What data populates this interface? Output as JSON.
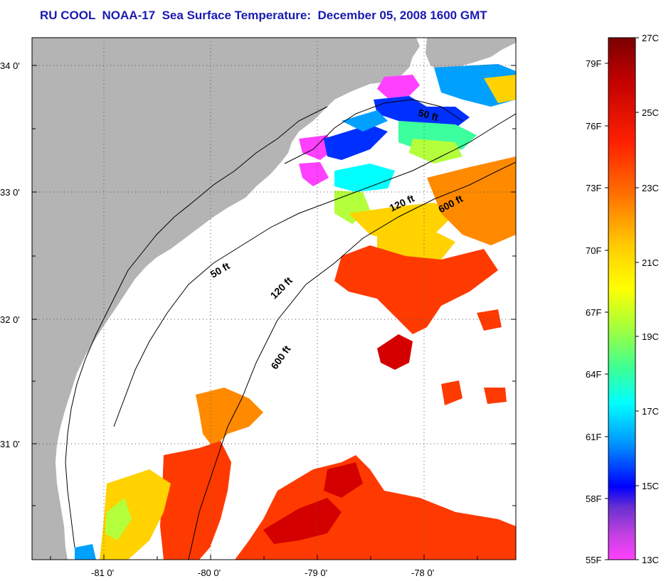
{
  "title": "RU COOL  NOAA-17  Sea Surface Temperature:  December 05, 2008 1600 GMT",
  "lat_ticks": [
    "34 0'",
    "33 0'",
    "32 0'",
    "31 0'"
  ],
  "lon_ticks": [
    "-81 0'",
    "-80 0'",
    "-79 0'",
    "-78 0'"
  ],
  "contours": [
    {
      "label": "50 ft"
    },
    {
      "label": "50 ft"
    },
    {
      "label": "120 ft"
    },
    {
      "label": "120 ft"
    },
    {
      "label": "600 ft"
    },
    {
      "label": "600 ft"
    }
  ],
  "colorbar": {
    "fahrenheit": [
      "79F",
      "76F",
      "73F",
      "70F",
      "67F",
      "64F",
      "61F",
      "58F",
      "55F"
    ],
    "celsius": [
      "27C",
      "25C",
      "23C",
      "21C",
      "19C",
      "17C",
      "15C",
      "13C"
    ],
    "colors": [
      "#7a0000",
      "#d40000",
      "#ff3a00",
      "#ff8a00",
      "#ffd200",
      "#ffff00",
      "#b4ff3c",
      "#3cff9e",
      "#00ffff",
      "#00a0ff",
      "#0030ff",
      "#2000e0",
      "#a030c0",
      "#ff40ff"
    ]
  },
  "colors": {
    "land": "#b4b4b4",
    "ocean_nodata": "#ffffff",
    "title": "#1a1ab0"
  }
}
